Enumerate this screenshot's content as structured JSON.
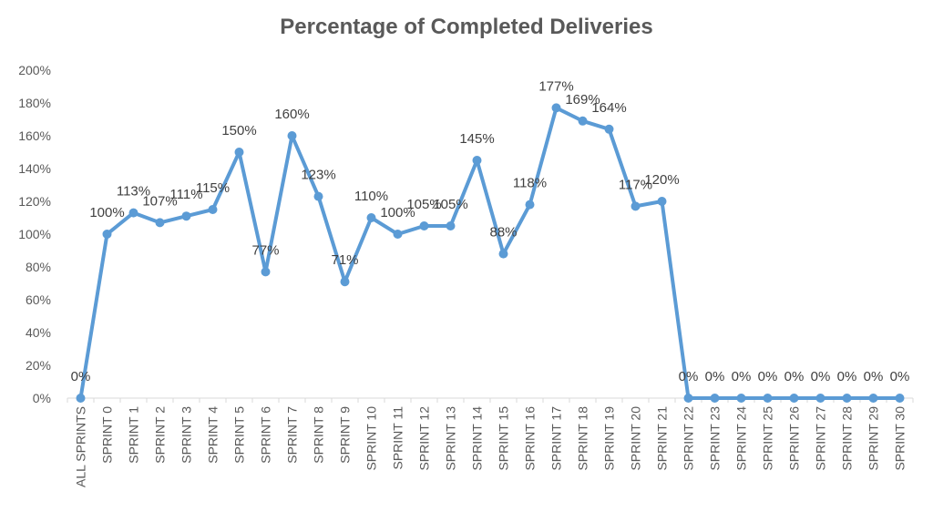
{
  "chart_data": {
    "type": "line",
    "title": "Percentage of Completed Deliveries",
    "xlabel": "",
    "ylabel": "",
    "ylim": [
      0,
      200
    ],
    "yticks": [
      "0%",
      "20%",
      "40%",
      "60%",
      "80%",
      "100%",
      "120%",
      "140%",
      "160%",
      "180%",
      "200%"
    ],
    "grid": false,
    "legend": "none",
    "categories": [
      "ALL SPRINTS",
      "SPRINT 0",
      "SPRINT 1",
      "SPRINT 2",
      "SPRINT 3",
      "SPRINT 4",
      "SPRINT 5",
      "SPRINT 6",
      "SPRINT 7",
      "SPRINT 8",
      "SPRINT 9",
      "SPRINT 10",
      "SPRINT 11",
      "SPRINT 12",
      "SPRINT 13",
      "SPRINT 14",
      "SPRINT 15",
      "SPRINT 16",
      "SPRINT 17",
      "SPRINT 18",
      "SPRINT 19",
      "SPRINT 20",
      "SPRINT 21",
      "SPRINT 22",
      "SPRINT 23",
      "SPRINT 24",
      "SPRINT 25",
      "SPRINT 26",
      "SPRINT 27",
      "SPRINT 28",
      "SPRINT 29",
      "SPRINT 30"
    ],
    "series": [
      {
        "values": [
          0,
          100,
          113,
          107,
          111,
          115,
          150,
          77,
          160,
          123,
          71,
          110,
          100,
          105,
          105,
          145,
          88,
          118,
          177,
          169,
          164,
          117,
          120,
          0,
          0,
          0,
          0,
          0,
          0,
          0,
          0,
          0
        ],
        "labels": [
          "0%",
          "100%",
          "113%",
          "107%",
          "111%",
          "115%",
          "150%",
          "77%",
          "160%",
          "123%",
          "71%",
          "110%",
          "100%",
          "105%",
          "105%",
          "145%",
          "88%",
          "118%",
          "177%",
          "169%",
          "164%",
          "117%",
          "120%",
          "0%",
          "0%",
          "0%",
          "0%",
          "0%",
          "0%",
          "0%",
          "0%",
          "0%"
        ],
        "color": "#5B9BD5"
      }
    ],
    "colors": {
      "axis": "#D9D9D9",
      "text": "#595959",
      "label": "#404040"
    }
  }
}
